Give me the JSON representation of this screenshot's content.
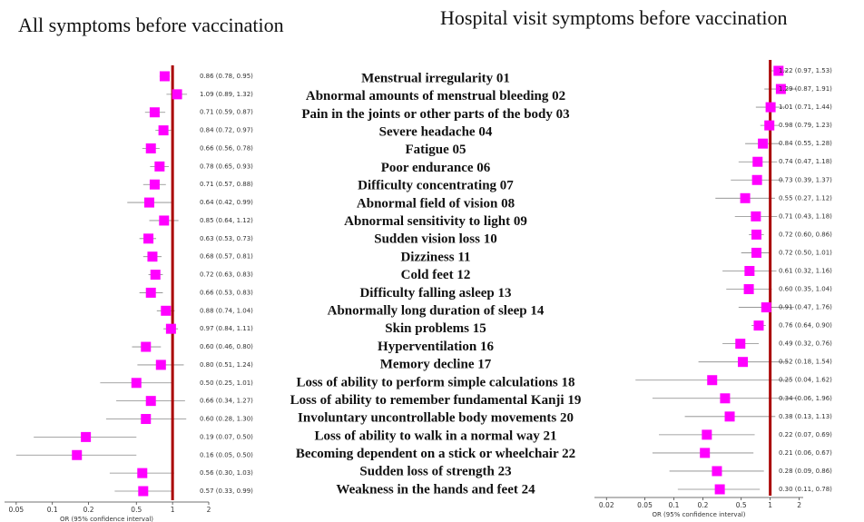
{
  "chart_data": [
    {
      "type": "forest",
      "title": "All symptoms before vaccination",
      "xlabel": "OR (95% confidence interval)",
      "categories": [
        "Menstrual irregularity 01",
        "Abnormal amounts of menstrual bleeding 02",
        "Pain in the joints or other parts of the body 03",
        "Severe headache 04",
        "Fatigue 05",
        "Poor endurance 06",
        "Difficulty concentrating 07",
        "Abnormal field of vision 08",
        "Abnormal sensitivity to light 09",
        "Sudden vision loss 10",
        "Dizziness 11",
        "Cold feet  12",
        "Difficulty falling asleep 13",
        "Abnormally long duration of sleep 14",
        "Skin problems 15",
        "Hyperventilation 16",
        "Memory decline 17",
        "Loss of ability to perform simple calculations 18",
        "Loss of ability to remember fundamental Kanji 19",
        "Involuntary uncontrollable body movements 20",
        "Loss of ability to walk in a normal way 21",
        "Becoming dependent on a stick or wheelchair 22",
        "Sudden loss of strength 23",
        "Weakness in the hands and feet 24"
      ],
      "values": [
        0.86,
        1.09,
        0.71,
        0.84,
        0.66,
        0.78,
        0.71,
        0.64,
        0.85,
        0.63,
        0.68,
        0.72,
        0.66,
        0.88,
        0.97,
        0.6,
        0.8,
        0.5,
        0.66,
        0.6,
        0.19,
        0.16,
        0.56,
        0.57
      ],
      "lower": [
        0.78,
        0.89,
        0.59,
        0.72,
        0.56,
        0.65,
        0.57,
        0.42,
        0.64,
        0.53,
        0.57,
        0.63,
        0.53,
        0.74,
        0.84,
        0.46,
        0.51,
        0.25,
        0.34,
        0.28,
        0.07,
        0.05,
        0.3,
        0.33
      ],
      "upper": [
        0.95,
        1.32,
        0.87,
        0.97,
        0.78,
        0.93,
        0.88,
        0.99,
        1.12,
        0.73,
        0.81,
        0.83,
        0.83,
        1.04,
        1.11,
        0.8,
        1.24,
        1.01,
        1.27,
        1.3,
        0.5,
        0.5,
        1.03,
        0.99
      ],
      "value_labels": [
        "0.86 (0.78, 0.95)",
        "1.09 (0.89, 1.32)",
        "0.71 (0.59, 0.87)",
        "0.84 (0.72, 0.97)",
        "0.66 (0.56, 0.78)",
        "0.78 (0.65, 0.93)",
        "0.71 (0.57, 0.88)",
        "0.64 (0.42, 0.99)",
        "0.85 (0.64, 1.12)",
        "0.63 (0.53, 0.73)",
        "0.68 (0.57, 0.81)",
        "0.72 (0.63, 0.83)",
        "0.66 (0.53, 0.83)",
        "0.88 (0.74, 1.04)",
        "0.97 (0.84, 1.11)",
        "0.60 (0.46, 0.80)",
        "0.80 (0.51, 1.24)",
        "0.50 (0.25, 1.01)",
        "0.66 (0.34, 1.27)",
        "0.60 (0.28, 1.30)",
        "0.19 (0.07, 0.50)",
        "0.16 (0.05, 0.50)",
        "0.56 (0.30, 1.03)",
        "0.57 (0.33, 0.99)"
      ],
      "xscale": "log",
      "xlim": [
        0.04,
        2
      ],
      "xticks": [
        0.05,
        0.1,
        0.2,
        0.5,
        1,
        2
      ],
      "reference": 1,
      "color": "#ff00ff",
      "reference_color": "#aa0000"
    },
    {
      "type": "forest",
      "title": "Hospital visit symptoms before vaccination",
      "xlabel": "OR (95% confidence interval)",
      "values": [
        1.22,
        1.29,
        1.01,
        0.98,
        0.84,
        0.74,
        0.73,
        0.55,
        0.71,
        0.72,
        0.72,
        0.61,
        0.6,
        0.91,
        0.76,
        0.49,
        0.52,
        0.25,
        0.34,
        0.38,
        0.22,
        0.21,
        0.28,
        0.3
      ],
      "lower": [
        0.97,
        0.87,
        0.71,
        0.79,
        0.55,
        0.47,
        0.39,
        0.27,
        0.43,
        0.6,
        0.5,
        0.32,
        0.35,
        0.47,
        0.64,
        0.32,
        0.18,
        0.04,
        0.06,
        0.13,
        0.07,
        0.06,
        0.09,
        0.11
      ],
      "upper": [
        1.53,
        1.91,
        1.44,
        1.23,
        1.28,
        1.18,
        1.37,
        1.12,
        1.18,
        0.86,
        1.01,
        1.16,
        1.04,
        1.76,
        0.9,
        0.76,
        1.54,
        1.62,
        1.96,
        1.13,
        0.69,
        0.67,
        0.86,
        0.78
      ],
      "value_labels": [
        "1.22 (0.97, 1.53)",
        "1.29 (0.87, 1.91)",
        "1.01 (0.71, 1.44)",
        "0.98 (0.79, 1.23)",
        "0.84 (0.55, 1.28)",
        "0.74 (0.47, 1.18)",
        "0.73 (0.39, 1.37)",
        "0.55 (0.27, 1.12)",
        "0.71 (0.43, 1.18)",
        "0.72 (0.60, 0.86)",
        "0.72 (0.50, 1.01)",
        "0.61 (0.32, 1.16)",
        "0.60 (0.35, 1.04)",
        "0.91 (0.47, 1.76)",
        "0.76 (0.64, 0.90)",
        "0.49 (0.32, 0.76)",
        "0.52 (0.18, 1.54)",
        "0.25 (0.04, 1.62)",
        "0.34 (0.06, 1.96)",
        "0.38 (0.13, 1.13)",
        "0.22 (0.07, 0.69)",
        "0.21 (0.06, 0.67)",
        "0.28 (0.09, 0.86)",
        "0.30 (0.11, 0.78)"
      ],
      "xscale": "log",
      "xlim": [
        0.015,
        2.2
      ],
      "xticks": [
        0.02,
        0.05,
        0.1,
        0.2,
        0.5,
        1,
        2
      ],
      "reference": 1,
      "color": "#ff00ff",
      "reference_color": "#aa0000"
    }
  ]
}
